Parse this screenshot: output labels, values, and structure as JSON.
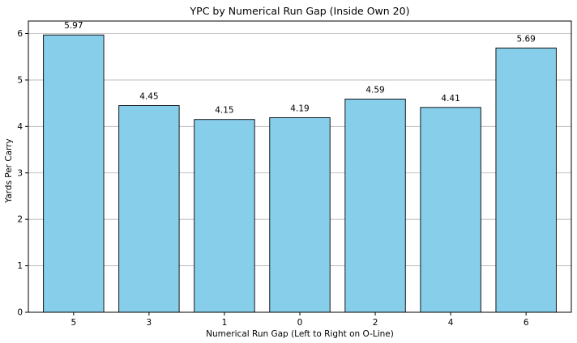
{
  "chart_data": {
    "type": "bar",
    "title": "YPC by Numerical Run Gap (Inside Own 20)",
    "xlabel": "Numerical Run Gap (Left to Right on O-Line)",
    "ylabel": "Yards Per Carry",
    "categories": [
      "5",
      "3",
      "1",
      "0",
      "2",
      "4",
      "6"
    ],
    "values": [
      5.97,
      4.45,
      4.15,
      4.19,
      4.59,
      4.41,
      5.69
    ],
    "value_labels": [
      "5.97",
      "4.45",
      "4.15",
      "4.19",
      "4.59",
      "4.41",
      "5.69"
    ],
    "ylim": [
      0,
      6.27
    ],
    "yticks": [
      0,
      1,
      2,
      3,
      4,
      5,
      6
    ],
    "grid": "horizontal",
    "bar_color": "#87ceeb",
    "edge_color": "#000000"
  }
}
